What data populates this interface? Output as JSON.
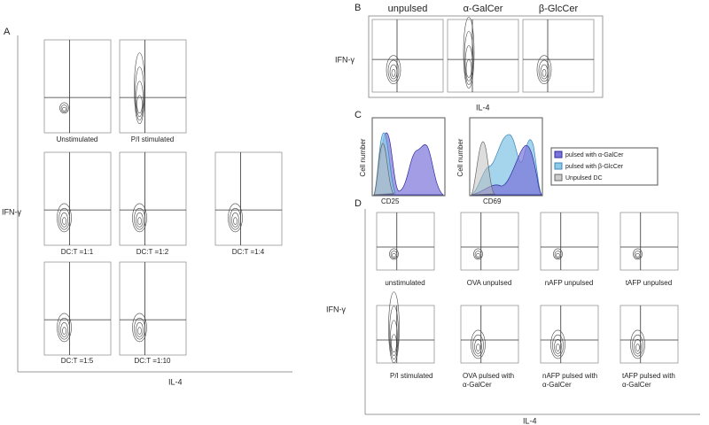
{
  "panels": {
    "A": {
      "label": "A",
      "y_axis": "IFN-γ",
      "x_axis": "IL-4",
      "captions": [
        "Unstimulated",
        "P/I stimulated",
        "DC:T =1:1",
        "DC:T =1:2",
        "DC:T =1:4",
        "DC:T =1:5",
        "DC:T =1:10"
      ]
    },
    "B": {
      "label": "B",
      "columns": [
        "unpulsed",
        "α-GalCer",
        "β-GlcCer"
      ],
      "y_axis": "IFN-γ",
      "x_axis": "IL-4"
    },
    "C": {
      "label": "C",
      "y_axis": "Cell number",
      "x_axes": [
        "CD25",
        "CD69"
      ],
      "legend": [
        "pulsed with α-GalCer",
        "pulsed with β-GlcCer",
        "Unpulsed DC"
      ]
    },
    "D": {
      "label": "D",
      "y_axis": "IFN-γ",
      "x_axis": "IL-4",
      "captions": [
        "unstimulated",
        "OVA unpulsed",
        "nAFP unpulsed",
        "tAFP unpulsed",
        "P/I stimulated"
      ],
      "pulsed_captions": [
        [
          "OVA pulsed with",
          "α-GalCer"
        ],
        [
          "nAFP pulsed with",
          "α-GalCer"
        ],
        [
          "tAFP pulsed with",
          "α-GalCer"
        ]
      ]
    }
  }
}
